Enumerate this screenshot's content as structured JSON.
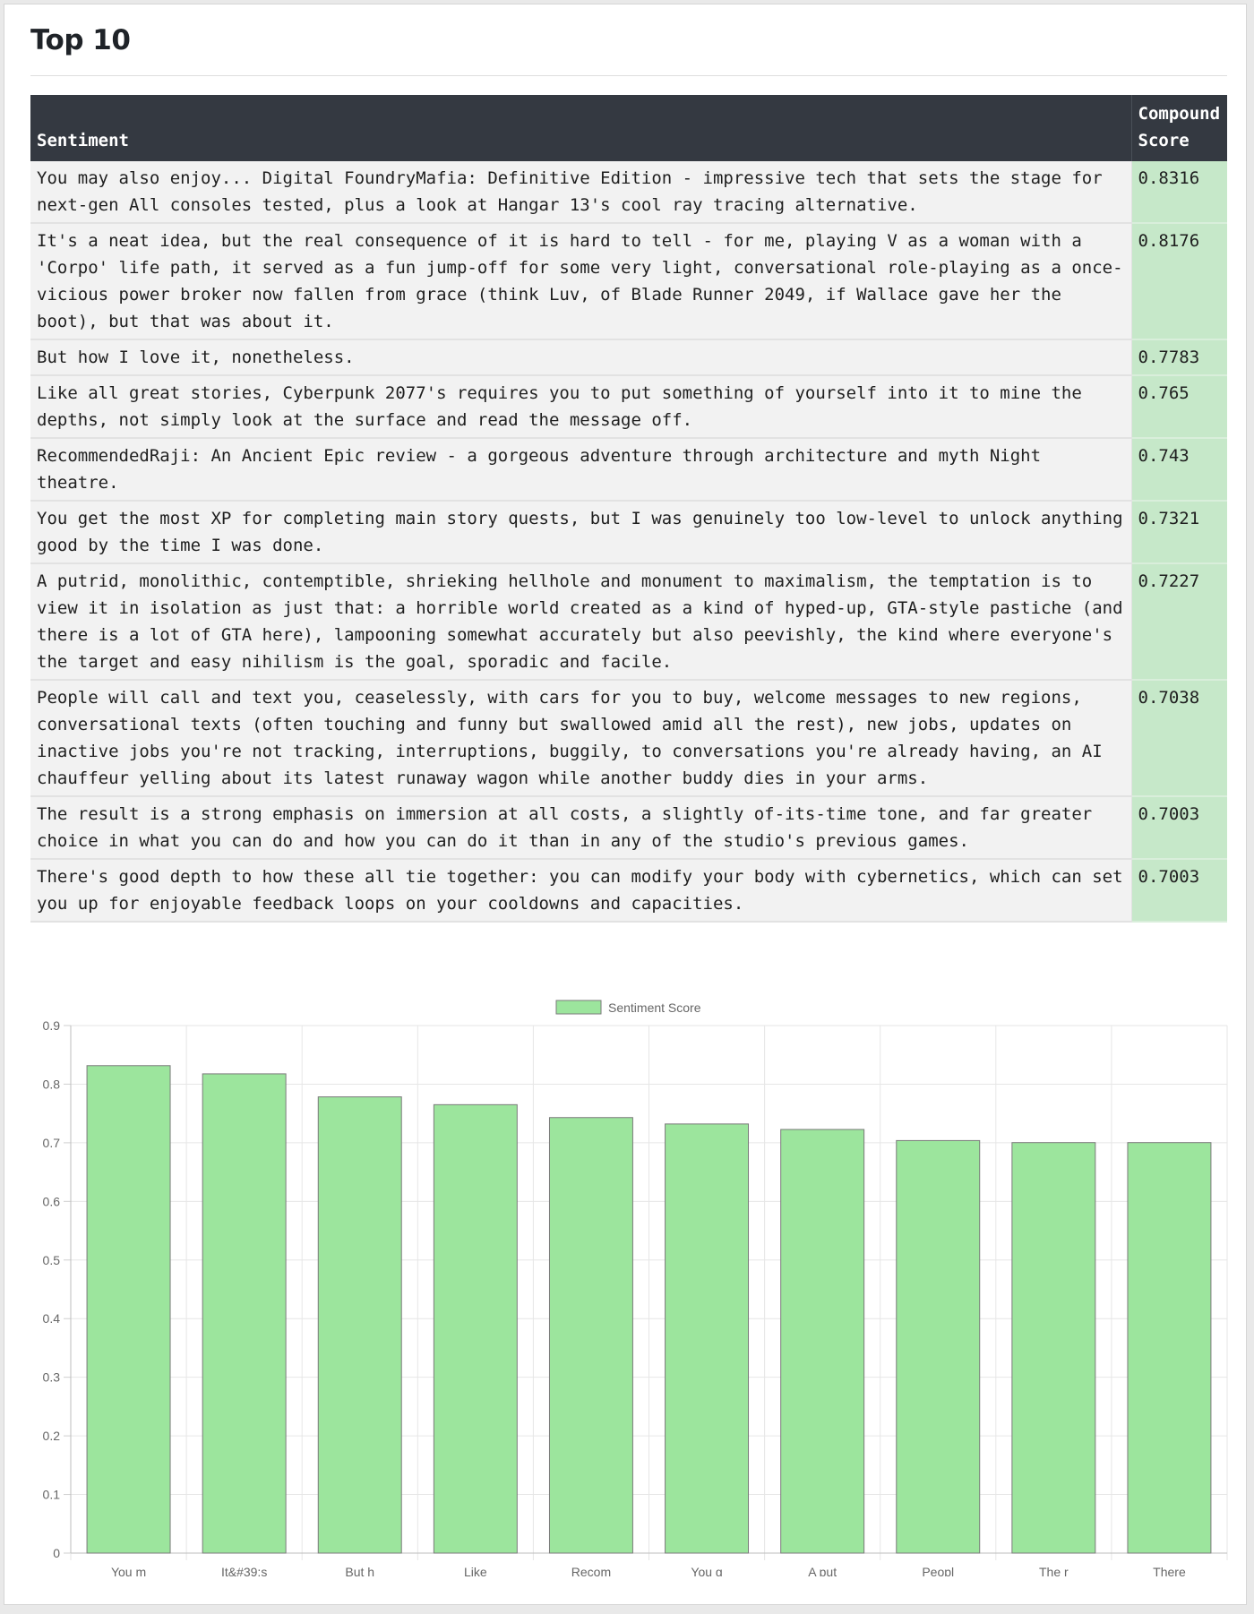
{
  "page": {
    "title": "Top 10"
  },
  "table": {
    "headers": [
      "Sentiment",
      "Compound Score"
    ],
    "rows": [
      {
        "sentiment": "You may also enjoy... Digital FoundryMafia: Definitive Edition - impressive tech that sets the stage for next-gen All consoles tested, plus a look at Hangar 13's cool ray tracing alternative.",
        "score": "0.8316"
      },
      {
        "sentiment": "It's a neat idea, but the real consequence of it is hard to tell - for me, playing V as a woman with a 'Corpo' life path, it served as a fun jump-off for some very light, conversational role-playing as a once-vicious power broker now fallen from grace (think Luv, of Blade Runner 2049, if Wallace gave her the boot), but that was about it.",
        "score": "0.8176"
      },
      {
        "sentiment": "But how I love it, nonetheless.",
        "score": "0.7783"
      },
      {
        "sentiment": "Like all great stories, Cyberpunk 2077's requires you to put something of yourself into it to mine the depths, not simply look at the surface and read the message off.",
        "score": "0.765"
      },
      {
        "sentiment": "RecommendedRaji: An Ancient Epic review - a gorgeous adventure through architecture and myth Night theatre.",
        "score": "0.743"
      },
      {
        "sentiment": "You get the most XP for completing main story quests, but I was genuinely too low-level to unlock anything good by the time I was done.",
        "score": "0.7321"
      },
      {
        "sentiment": "A putrid, monolithic, contemptible, shrieking hellhole and monument to maximalism, the temptation is to view it in isolation as just that: a horrible world created as a kind of hyped-up, GTA-style pastiche (and there is a lot of GTA here), lampooning somewhat accurately but also peevishly, the kind where everyone's the target and easy nihilism is the goal, sporadic and facile.",
        "score": "0.7227"
      },
      {
        "sentiment": "People will call and text you, ceaselessly, with cars for you to buy, welcome messages to new regions, conversational texts (often touching and funny but swallowed amid all the rest), new jobs, updates on inactive jobs you're not tracking, interruptions, buggily, to conversations you're already having, an AI chauffeur yelling about its latest runaway wagon while another buddy dies in your arms.",
        "score": "0.7038"
      },
      {
        "sentiment": "The result is a strong emphasis on immersion at all costs, a slightly of-its-time tone, and far greater choice in what you can do and how you can do it than in any of the studio's previous games.",
        "score": "0.7003"
      },
      {
        "sentiment": "There's good depth to how these all tie together: you can modify your body with cybernetics, which can set you up for enjoyable feedback loops on your cooldowns and capacities.",
        "score": "0.7003"
      }
    ]
  },
  "colors": {
    "header_bg": "#343941",
    "row_bg": "#f2f2f2",
    "score_bg": "#c6e8c9",
    "bar_fill": "#9ce59d",
    "bar_stroke": "#7a7a7a"
  },
  "chart_data": {
    "type": "bar",
    "categories": [
      "You m",
      "It&#39;s",
      "But h",
      "Like ",
      "Recom",
      "You g",
      "A put",
      "Peopl",
      "The r",
      "There"
    ],
    "series": [
      {
        "name": "Sentiment Score",
        "values": [
          0.8316,
          0.8176,
          0.7783,
          0.765,
          0.743,
          0.7321,
          0.7227,
          0.7038,
          0.7003,
          0.7003
        ]
      }
    ],
    "ylim": [
      0,
      0.9
    ],
    "yticks": [
      "0",
      "0.1",
      "0.2",
      "0.3",
      "0.4",
      "0.5",
      "0.6",
      "0.7",
      "0.8",
      "0.9"
    ],
    "ytick_values": [
      0,
      0.1,
      0.2,
      0.3,
      0.4,
      0.5,
      0.6,
      0.7,
      0.8,
      0.9
    ],
    "grid": true,
    "legend": "top-center"
  }
}
